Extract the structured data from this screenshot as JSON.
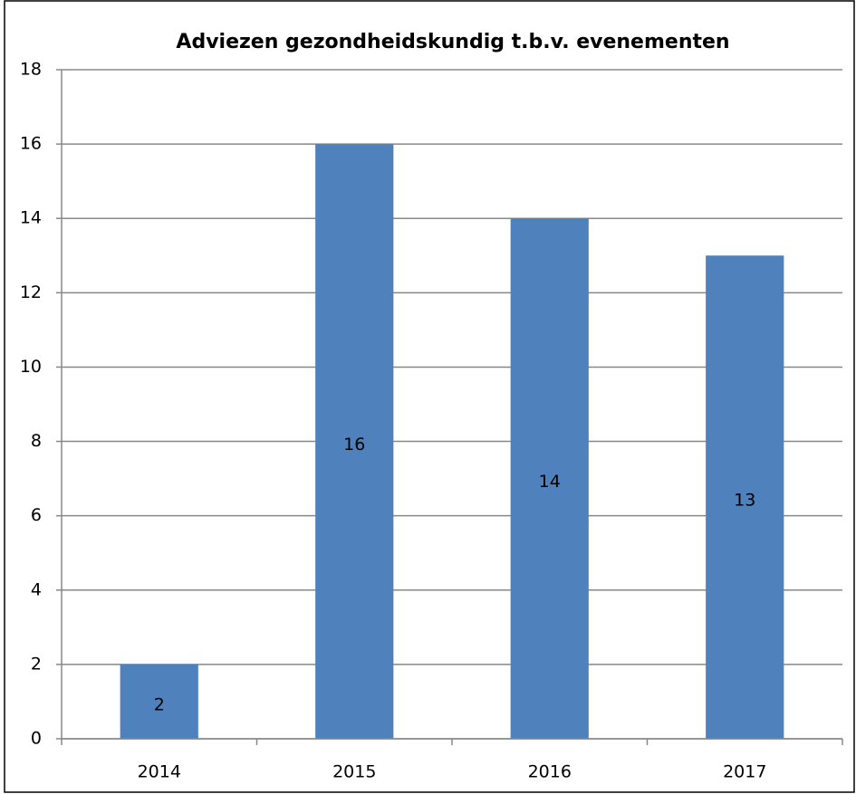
{
  "chart_data": {
    "type": "bar",
    "title": "Adviezen gezondheidskundig t.b.v. evenementen",
    "categories": [
      "2014",
      "2015",
      "2016",
      "2017"
    ],
    "values": [
      2,
      16,
      14,
      13
    ],
    "color": "#4f81bd",
    "ylim": [
      0,
      18
    ],
    "yticks": [
      0,
      2,
      4,
      6,
      8,
      10,
      12,
      14,
      16,
      18
    ],
    "grid": true
  }
}
